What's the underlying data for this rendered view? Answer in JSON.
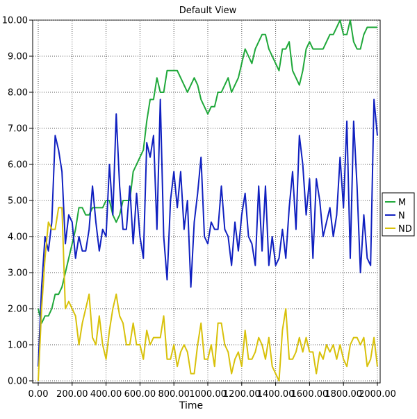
{
  "chart_data": {
    "type": "line",
    "title": "Default View",
    "xlabel": "Time",
    "ylabel": "",
    "xlim": [
      0,
      2000
    ],
    "ylim": [
      0,
      10
    ],
    "x_ticks": [
      0,
      200,
      400,
      600,
      800,
      1000,
      1200,
      1400,
      1600,
      1800,
      2000
    ],
    "x_tick_labels": [
      "0.00",
      "200.00",
      "400.00",
      "600.00",
      "800.00",
      "1000.00",
      "1200.00",
      "1400.00",
      "1600.00",
      "1800.00",
      "2000.00"
    ],
    "y_ticks": [
      0,
      1,
      2,
      3,
      4,
      5,
      6,
      7,
      8,
      9,
      10
    ],
    "y_tick_labels": [
      "0.00",
      "1.00",
      "2.00",
      "3.00",
      "4.00",
      "5.00",
      "6.00",
      "7.00",
      "8.00",
      "9.00",
      "10.00"
    ],
    "grid": true,
    "legend_position": "right",
    "x": [
      0,
      20,
      40,
      60,
      80,
      100,
      120,
      140,
      160,
      180,
      200,
      220,
      240,
      260,
      280,
      300,
      320,
      340,
      360,
      380,
      400,
      420,
      440,
      460,
      480,
      500,
      520,
      540,
      560,
      580,
      600,
      620,
      640,
      660,
      680,
      700,
      720,
      740,
      760,
      780,
      800,
      820,
      840,
      860,
      880,
      900,
      920,
      940,
      960,
      980,
      1000,
      1020,
      1040,
      1060,
      1080,
      1100,
      1120,
      1140,
      1160,
      1180,
      1200,
      1220,
      1240,
      1260,
      1280,
      1300,
      1320,
      1340,
      1360,
      1380,
      1400,
      1420,
      1440,
      1460,
      1480,
      1500,
      1520,
      1540,
      1560,
      1580,
      1600,
      1620,
      1640,
      1660,
      1680,
      1700,
      1720,
      1740,
      1760,
      1780,
      1800,
      1820,
      1840,
      1860,
      1880,
      1900,
      1920,
      1940,
      1960,
      1980,
      2000
    ],
    "series": [
      {
        "name": "M",
        "color": "#1fa83a",
        "values": [
          2.0,
          1.6,
          1.8,
          1.8,
          2.0,
          2.4,
          2.4,
          2.6,
          3.0,
          3.4,
          3.8,
          4.2,
          4.8,
          4.8,
          4.6,
          4.6,
          4.8,
          4.8,
          4.8,
          4.8,
          5.0,
          5.0,
          4.6,
          4.4,
          4.6,
          5.0,
          5.0,
          5.0,
          5.8,
          6.0,
          6.2,
          6.4,
          7.2,
          7.8,
          7.8,
          8.4,
          8.0,
          8.0,
          8.6,
          8.6,
          8.6,
          8.6,
          8.4,
          8.2,
          8.0,
          8.2,
          8.4,
          8.2,
          7.8,
          7.6,
          7.4,
          7.6,
          7.6,
          8.0,
          8.0,
          8.2,
          8.4,
          8.0,
          8.2,
          8.4,
          8.8,
          9.2,
          9.0,
          8.8,
          9.2,
          9.4,
          9.6,
          9.6,
          9.2,
          9.0,
          8.8,
          8.6,
          9.2,
          9.2,
          9.4,
          8.6,
          8.4,
          8.2,
          8.6,
          9.2,
          9.4,
          9.2,
          9.2,
          9.2,
          9.2,
          9.4,
          9.6,
          9.6,
          9.8,
          10.0,
          9.6,
          9.6,
          10.0,
          9.4,
          9.2,
          9.2,
          9.6,
          9.8,
          9.8,
          9.8,
          9.8
        ]
      },
      {
        "name": "N",
        "color": "#1020c0",
        "values": [
          0.4,
          2.6,
          4.0,
          3.6,
          4.4,
          6.8,
          6.4,
          5.8,
          3.8,
          4.6,
          4.4,
          3.4,
          4.0,
          3.6,
          3.6,
          4.2,
          5.4,
          4.4,
          3.6,
          4.2,
          4.0,
          6.0,
          4.6,
          7.4,
          5.4,
          4.2,
          4.2,
          5.4,
          3.8,
          5.2,
          4.0,
          3.4,
          6.6,
          6.2,
          6.8,
          4.2,
          7.8,
          4.0,
          2.8,
          5.0,
          5.8,
          4.8,
          5.8,
          4.2,
          5.0,
          2.6,
          4.4,
          5.2,
          6.2,
          4.0,
          3.8,
          4.4,
          4.2,
          4.2,
          5.4,
          4.2,
          4.0,
          3.2,
          4.4,
          3.6,
          4.6,
          5.2,
          4.0,
          3.8,
          3.2,
          5.4,
          3.6,
          5.4,
          3.2,
          4.0,
          3.2,
          3.4,
          4.2,
          3.4,
          4.8,
          5.8,
          4.2,
          6.8,
          6.0,
          4.6,
          5.6,
          3.4,
          5.6,
          5.0,
          4.0,
          4.4,
          4.8,
          4.0,
          4.6,
          6.2,
          4.8,
          7.2,
          3.4,
          7.2,
          5.4,
          3.0,
          4.6,
          3.4,
          3.2,
          7.8,
          6.8
        ]
      },
      {
        "name": "ND",
        "color": "#d8c10a",
        "values": [
          0.0,
          2.0,
          3.4,
          4.4,
          4.2,
          4.2,
          4.8,
          4.8,
          2.0,
          2.2,
          2.0,
          1.8,
          1.0,
          1.6,
          2.0,
          2.4,
          1.2,
          1.0,
          1.8,
          1.0,
          0.6,
          1.4,
          2.0,
          2.4,
          1.8,
          1.6,
          1.0,
          1.0,
          1.6,
          1.0,
          1.0,
          0.6,
          1.4,
          1.0,
          1.2,
          1.2,
          1.2,
          1.8,
          0.6,
          0.6,
          1.0,
          0.4,
          0.8,
          1.0,
          0.8,
          0.2,
          0.2,
          1.0,
          1.6,
          0.6,
          0.6,
          1.0,
          0.4,
          1.6,
          1.6,
          1.0,
          0.8,
          0.2,
          0.6,
          0.8,
          0.4,
          1.4,
          0.6,
          0.6,
          0.8,
          1.2,
          1.0,
          0.6,
          1.2,
          0.4,
          0.2,
          0.0,
          1.4,
          2.0,
          0.6,
          0.6,
          0.8,
          1.2,
          0.8,
          1.2,
          0.8,
          0.8,
          0.2,
          0.8,
          0.6,
          1.0,
          0.8,
          1.0,
          0.6,
          1.0,
          0.6,
          0.4,
          1.0,
          1.2,
          1.2,
          1.0,
          1.2,
          0.4,
          0.6,
          1.2,
          0.4
        ]
      }
    ]
  }
}
